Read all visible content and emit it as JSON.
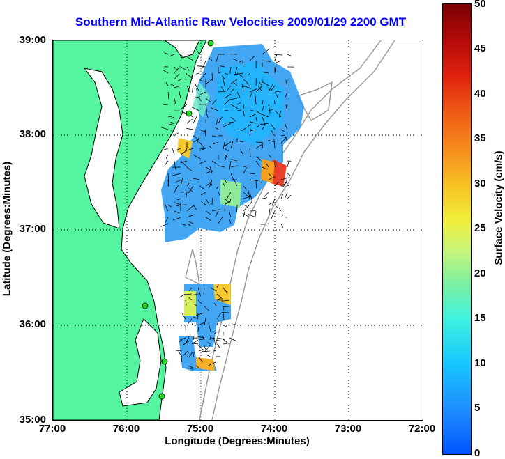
{
  "title": "Southern Mid-Atlantic Raw Velocities 2009/01/29 2200 GMT",
  "axes": {
    "xlabel": "Longitude (Degrees:Minutes)",
    "ylabel": "Latitude (Degrees:Minutes)",
    "xticks": [
      "77:00",
      "76:00",
      "75:00",
      "74:00",
      "73:00",
      "72:00"
    ],
    "yticks": [
      "39:00",
      "38:00",
      "37:00",
      "36:00",
      "35:00"
    ]
  },
  "colorbar": {
    "label": "Surface Velocity (cm/s)",
    "ticks": [
      "50",
      "45",
      "40",
      "35",
      "30",
      "25",
      "20",
      "15",
      "10",
      "5",
      "0"
    ]
  },
  "colors": {
    "title": "#0000ff",
    "land": "#55f5a0",
    "coast": "#000000",
    "bathymetry": "#9a9a9a",
    "station": "#22dd22"
  },
  "stations": [
    "station-1",
    "station-2",
    "station-3",
    "station-4",
    "station-5"
  ]
}
